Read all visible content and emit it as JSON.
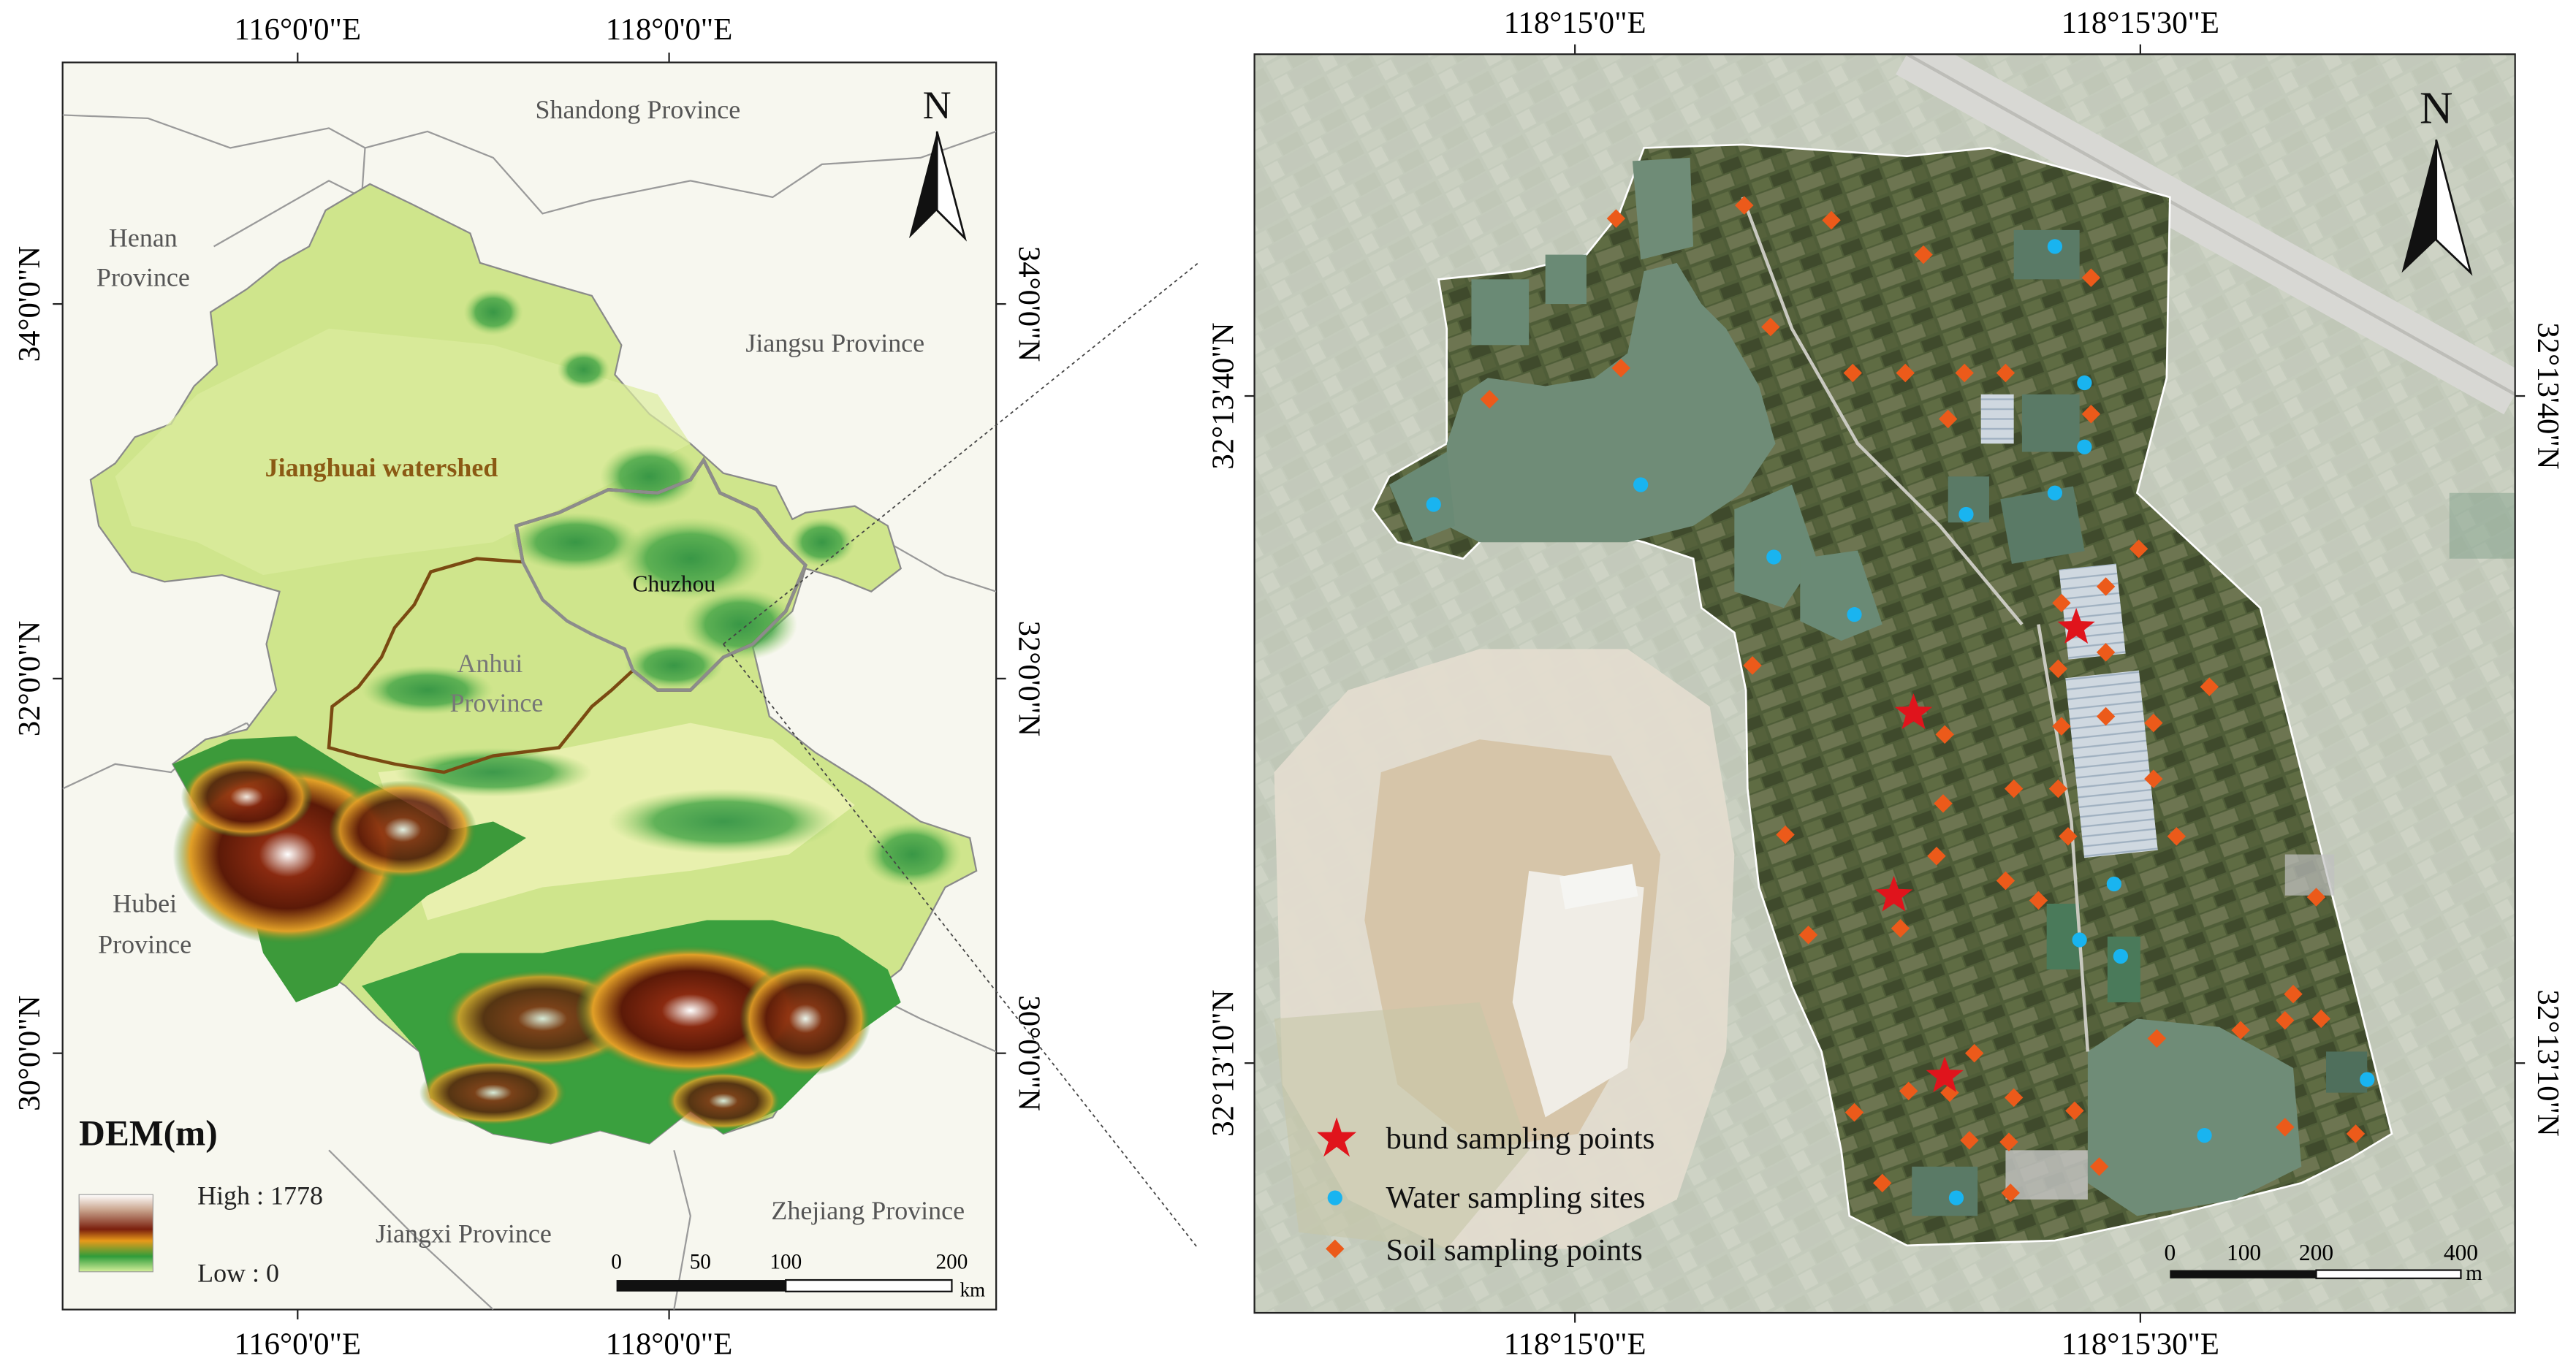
{
  "left_map": {
    "top_ticks": [
      "116°0'0\"E",
      "118°0'0\"E"
    ],
    "bottom_ticks": [
      "116°0'0\"E",
      "118°0'0\"E"
    ],
    "left_ticks": [
      "34°0'0\"N",
      "32°0'0\"N",
      "30°0'0\"N"
    ],
    "right_ticks": [
      "34°0'0\"N",
      "32°0'0\"N",
      "30°0'0\"N"
    ],
    "labels": {
      "shandong": "Shandong Province",
      "henan_1": "Henan",
      "henan_2": "Province",
      "jiangsu": "Jiangsu Province",
      "watershed": "Jianghuai watershed",
      "chuzhou": "Chuzhou",
      "anhui_1": "Anhui",
      "anhui_2": "Province",
      "hubei_1": "Hubei",
      "hubei_2": "Province",
      "jiangxi": "Jiangxi Province",
      "zhejiang": "Zhejiang Province"
    },
    "north": "N",
    "dem_title": "DEM(m)",
    "dem_high": "High : 1778",
    "dem_low": "Low : 0",
    "scale_ticks": [
      "0",
      "50",
      "100",
      "200"
    ],
    "scale_unit": "km",
    "colors": {
      "watershed_boundary": "#7a4a12",
      "chuzhou_boundary": "#8a8a8a",
      "watershed_label": "#8b5a14"
    }
  },
  "right_map": {
    "top_ticks": [
      "118°15'0\"E",
      "118°15'30\"E"
    ],
    "bottom_ticks": [
      "118°15'0\"E",
      "118°15'30\"E"
    ],
    "left_ticks": [
      "32°13'40\"N",
      "32°13'10\"N"
    ],
    "right_ticks": [
      "32°13'40\"N",
      "32°13'10\"N"
    ],
    "north": "N",
    "legend": {
      "bund": "bund sampling points",
      "water": "Water sampling sites",
      "soil": "Soil sampling points"
    },
    "scale_ticks": [
      "0",
      "100",
      "200",
      "400"
    ],
    "scale_unit": "m",
    "colors": {
      "bund": "#e0141c",
      "water": "#19b4f0",
      "soil": "#ec5a1a"
    },
    "bund_points": [
      [
        1263,
        382
      ],
      [
        1164,
        434
      ],
      [
        1152,
        545
      ],
      [
        1183,
        655
      ]
    ],
    "water_points": [
      [
        1250,
        150
      ],
      [
        1268,
        233
      ],
      [
        1268,
        272
      ],
      [
        1250,
        300
      ],
      [
        998,
        295
      ],
      [
        872,
        307
      ],
      [
        1196,
        313
      ],
      [
        1079,
        339
      ],
      [
        1128,
        374
      ],
      [
        1286,
        538
      ],
      [
        1265,
        572
      ],
      [
        1290,
        582
      ],
      [
        1440,
        657
      ],
      [
        1190,
        729
      ],
      [
        1341,
        691
      ]
    ],
    "soil_points": [
      [
        983,
        133
      ],
      [
        1061,
        125
      ],
      [
        1114,
        134
      ],
      [
        1170,
        155
      ],
      [
        1272,
        169
      ],
      [
        1077,
        199
      ],
      [
        906,
        243
      ],
      [
        986,
        224
      ],
      [
        1127,
        227
      ],
      [
        1159,
        227
      ],
      [
        1195,
        227
      ],
      [
        1220,
        227
      ],
      [
        1185,
        255
      ],
      [
        1272,
        252
      ],
      [
        1301,
        334
      ],
      [
        1254,
        367
      ],
      [
        1281,
        357
      ],
      [
        1066,
        405
      ],
      [
        1281,
        397
      ],
      [
        1252,
        407
      ],
      [
        1344,
        418
      ],
      [
        1183,
        447
      ],
      [
        1281,
        436
      ],
      [
        1310,
        440
      ],
      [
        1254,
        442
      ],
      [
        1252,
        480
      ],
      [
        1225,
        480
      ],
      [
        1182,
        489
      ],
      [
        1310,
        474
      ],
      [
        1086,
        508
      ],
      [
        1178,
        521
      ],
      [
        1258,
        509
      ],
      [
        1324,
        509
      ],
      [
        1220,
        536
      ],
      [
        1240,
        548
      ],
      [
        1156,
        565
      ],
      [
        1100,
        569
      ],
      [
        1409,
        546
      ],
      [
        1395,
        605
      ],
      [
        1390,
        621
      ],
      [
        1412,
        620
      ],
      [
        1312,
        632
      ],
      [
        1363,
        627
      ],
      [
        1201,
        641
      ],
      [
        1186,
        665
      ],
      [
        1161,
        664
      ],
      [
        1128,
        677
      ],
      [
        1225,
        668
      ],
      [
        1262,
        676
      ],
      [
        1433,
        690
      ],
      [
        1390,
        686
      ],
      [
        1198,
        694
      ],
      [
        1222,
        695
      ],
      [
        1277,
        710
      ],
      [
        1145,
        720
      ],
      [
        1223,
        726
      ]
    ]
  }
}
